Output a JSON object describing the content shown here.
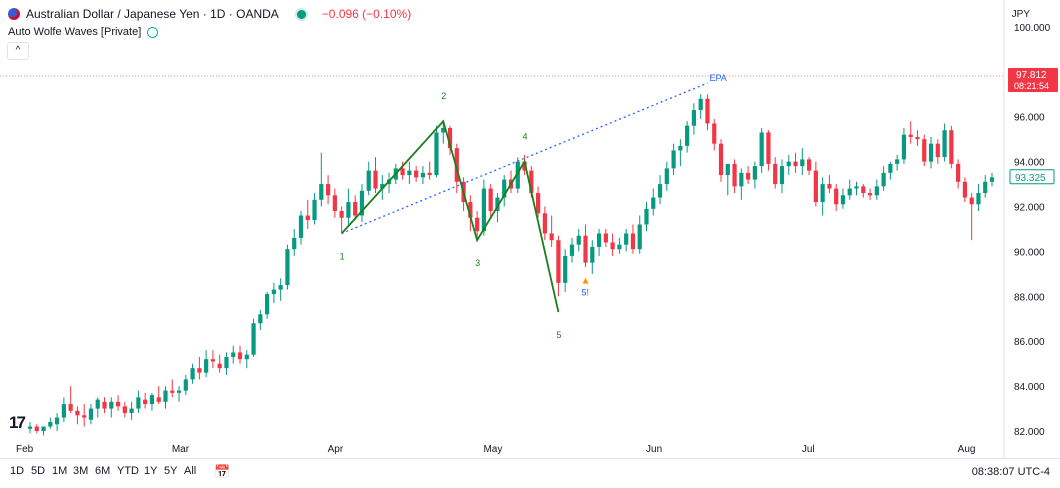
{
  "header": {
    "symbol": "Australian Dollar / Japanese Yen · 1D · OANDA",
    "change": "−0.096 (−0.10%)",
    "currency": "JPY"
  },
  "indicator": {
    "name": "Auto Wolfe Waves [Private]",
    "collapse_glyph": "^"
  },
  "bottom_bar": {
    "timeframes": [
      "1D",
      "5D",
      "1M",
      "3M",
      "6M",
      "YTD",
      "1Y",
      "5Y",
      "All"
    ],
    "clock": "08:38:07 UTC-4"
  },
  "colors": {
    "up": "#089981",
    "down": "#f23645",
    "wave": "#1b7f1b",
    "epa": "#2962ff",
    "marker": "#ff9800"
  },
  "chart_data": {
    "type": "candlestick",
    "ylim": [
      81.6,
      101.2
    ],
    "yticks": [
      "100.000",
      "98.000",
      "96.000",
      "94.000",
      "92.000",
      "90.000",
      "88.000",
      "86.000",
      "84.000",
      "82.000"
    ],
    "ytick_values": [
      100,
      98,
      96,
      94,
      92,
      90,
      88,
      86,
      84,
      82
    ],
    "xlabels": [
      "Feb",
      "Mar",
      "Apr",
      "May",
      "Jun",
      "Jul",
      "Aug"
    ],
    "xlabel_index": [
      0,
      23,
      46,
      69,
      93,
      116,
      139
    ],
    "price_labels": {
      "high_line": {
        "value": 97.812,
        "text": "97.812",
        "countdown": "08:21:54"
      },
      "last": {
        "value": 93.325,
        "text": "93.325"
      }
    },
    "wave_points": [
      {
        "label": "1",
        "i": 46,
        "price": 90.8
      },
      {
        "label": "2",
        "i": 61,
        "price": 95.8
      },
      {
        "label": "3",
        "i": 66,
        "price": 90.5
      },
      {
        "label": "4",
        "i": 73,
        "price": 94.0
      },
      {
        "label": "5",
        "i": 78,
        "price": 87.3
      }
    ],
    "epa": {
      "label": "EPA",
      "from_i": 46,
      "from_price": 90.8,
      "to_i": 100,
      "to_price": 97.5
    },
    "marker": {
      "label": "5!",
      "i": 82,
      "price": 88.7
    },
    "candles": [
      [
        82.1,
        82.4,
        81.9,
        82.2
      ],
      [
        82.2,
        82.3,
        81.9,
        82.0
      ],
      [
        82.0,
        82.2,
        81.8,
        82.2
      ],
      [
        82.2,
        82.6,
        82.1,
        82.4
      ],
      [
        82.3,
        82.8,
        82.0,
        82.6
      ],
      [
        82.6,
        83.5,
        82.4,
        83.2
      ],
      [
        83.2,
        84.0,
        82.8,
        82.9
      ],
      [
        82.9,
        83.1,
        82.3,
        82.7
      ],
      [
        82.7,
        83.2,
        82.2,
        82.6
      ],
      [
        82.5,
        83.2,
        82.3,
        83.0
      ],
      [
        83.0,
        83.5,
        82.6,
        83.4
      ],
      [
        83.3,
        83.5,
        82.8,
        83.0
      ],
      [
        83.0,
        83.5,
        82.6,
        83.3
      ],
      [
        83.3,
        83.6,
        82.9,
        83.1
      ],
      [
        83.1,
        83.3,
        82.6,
        82.8
      ],
      [
        82.8,
        83.3,
        82.5,
        83.0
      ],
      [
        83.0,
        83.8,
        82.8,
        83.5
      ],
      [
        83.4,
        83.7,
        83.0,
        83.2
      ],
      [
        83.2,
        83.7,
        82.9,
        83.6
      ],
      [
        83.5,
        84.0,
        83.2,
        83.3
      ],
      [
        83.3,
        84.0,
        83.0,
        83.8
      ],
      [
        83.8,
        84.3,
        83.5,
        83.7
      ],
      [
        83.7,
        84.0,
        83.3,
        83.8
      ],
      [
        83.8,
        84.5,
        83.6,
        84.3
      ],
      [
        84.3,
        85.0,
        84.1,
        84.8
      ],
      [
        84.8,
        85.3,
        84.3,
        84.6
      ],
      [
        84.6,
        85.6,
        84.4,
        85.2
      ],
      [
        85.2,
        85.6,
        84.8,
        85.1
      ],
      [
        85.0,
        85.4,
        84.6,
        84.8
      ],
      [
        84.8,
        85.5,
        84.5,
        85.3
      ],
      [
        85.3,
        85.8,
        85.0,
        85.5
      ],
      [
        85.5,
        85.8,
        85.0,
        85.2
      ],
      [
        85.2,
        85.6,
        84.8,
        85.4
      ],
      [
        85.4,
        87.0,
        85.3,
        86.8
      ],
      [
        86.8,
        87.4,
        86.5,
        87.2
      ],
      [
        87.2,
        88.2,
        87.0,
        88.1
      ],
      [
        88.1,
        88.6,
        87.7,
        88.3
      ],
      [
        88.3,
        88.8,
        87.8,
        88.5
      ],
      [
        88.5,
        90.3,
        88.3,
        90.1
      ],
      [
        90.1,
        91.0,
        89.8,
        90.6
      ],
      [
        90.6,
        91.8,
        90.3,
        91.6
      ],
      [
        91.6,
        92.3,
        91.0,
        91.4
      ],
      [
        91.4,
        92.6,
        91.2,
        92.3
      ],
      [
        92.3,
        94.4,
        92.0,
        93.0
      ],
      [
        93.0,
        93.4,
        92.1,
        92.5
      ],
      [
        92.5,
        92.8,
        91.5,
        91.8
      ],
      [
        91.8,
        92.0,
        90.8,
        91.5
      ],
      [
        91.5,
        92.8,
        91.2,
        92.2
      ],
      [
        92.2,
        92.5,
        91.4,
        91.6
      ],
      [
        91.6,
        93.0,
        91.3,
        92.7
      ],
      [
        92.7,
        94.0,
        92.5,
        93.6
      ],
      [
        93.6,
        94.2,
        92.6,
        92.8
      ],
      [
        92.8,
        93.4,
        92.3,
        93.0
      ],
      [
        93.0,
        93.5,
        92.6,
        93.2
      ],
      [
        93.2,
        93.9,
        93.0,
        93.7
      ],
      [
        93.7,
        94.0,
        93.2,
        93.4
      ],
      [
        93.4,
        94.0,
        93.0,
        93.6
      ],
      [
        93.6,
        93.8,
        93.1,
        93.3
      ],
      [
        93.3,
        93.8,
        93.0,
        93.5
      ],
      [
        93.5,
        94.0,
        93.2,
        93.4
      ],
      [
        93.4,
        95.6,
        93.3,
        95.3
      ],
      [
        95.3,
        95.8,
        94.8,
        95.5
      ],
      [
        95.5,
        95.6,
        94.3,
        94.6
      ],
      [
        94.6,
        94.8,
        92.6,
        93.1
      ],
      [
        93.1,
        93.3,
        91.8,
        92.2
      ],
      [
        92.2,
        92.5,
        90.9,
        91.5
      ],
      [
        91.5,
        91.8,
        90.5,
        90.9
      ],
      [
        90.9,
        93.2,
        90.7,
        92.8
      ],
      [
        92.8,
        93.0,
        91.5,
        91.8
      ],
      [
        91.8,
        92.6,
        91.3,
        92.4
      ],
      [
        92.4,
        93.4,
        92.0,
        93.2
      ],
      [
        93.2,
        93.6,
        92.6,
        92.8
      ],
      [
        92.8,
        94.2,
        92.6,
        94.0
      ],
      [
        94.0,
        94.3,
        93.4,
        93.6
      ],
      [
        93.6,
        93.8,
        92.4,
        92.6
      ],
      [
        92.6,
        92.9,
        91.5,
        91.7
      ],
      [
        91.7,
        92.0,
        90.5,
        90.8
      ],
      [
        90.8,
        91.6,
        90.2,
        90.5
      ],
      [
        90.5,
        90.7,
        88.0,
        88.6
      ],
      [
        88.6,
        90.1,
        88.2,
        89.8
      ],
      [
        89.8,
        90.6,
        89.5,
        90.3
      ],
      [
        90.3,
        91.0,
        90.0,
        90.7
      ],
      [
        90.7,
        91.2,
        89.3,
        89.5
      ],
      [
        89.5,
        90.5,
        89.0,
        90.2
      ],
      [
        90.2,
        91.0,
        89.8,
        90.8
      ],
      [
        90.8,
        91.0,
        90.2,
        90.4
      ],
      [
        90.4,
        90.8,
        89.8,
        90.1
      ],
      [
        90.1,
        90.6,
        89.9,
        90.3
      ],
      [
        90.3,
        91.0,
        90.0,
        90.8
      ],
      [
        90.8,
        91.2,
        89.9,
        90.1
      ],
      [
        90.1,
        91.6,
        89.9,
        91.2
      ],
      [
        91.2,
        92.2,
        90.9,
        91.9
      ],
      [
        91.9,
        92.8,
        91.6,
        92.4
      ],
      [
        92.4,
        93.4,
        92.1,
        93.0
      ],
      [
        93.0,
        94.0,
        92.7,
        93.7
      ],
      [
        93.7,
        94.8,
        93.4,
        94.5
      ],
      [
        94.5,
        95.0,
        93.8,
        94.7
      ],
      [
        94.7,
        95.8,
        94.4,
        95.6
      ],
      [
        95.6,
        96.6,
        95.2,
        96.3
      ],
      [
        96.3,
        97.0,
        95.9,
        96.8
      ],
      [
        96.8,
        97.0,
        95.4,
        95.7
      ],
      [
        95.7,
        95.9,
        94.5,
        94.8
      ],
      [
        94.8,
        95.0,
        93.1,
        93.4
      ],
      [
        93.4,
        93.8,
        92.5,
        93.9
      ],
      [
        93.9,
        94.1,
        92.6,
        92.9
      ],
      [
        92.9,
        93.7,
        92.3,
        93.5
      ],
      [
        93.5,
        93.8,
        93.0,
        93.2
      ],
      [
        93.2,
        94.0,
        92.8,
        93.8
      ],
      [
        93.8,
        95.5,
        93.5,
        95.3
      ],
      [
        95.3,
        95.4,
        93.6,
        93.9
      ],
      [
        93.9,
        94.2,
        92.8,
        93.0
      ],
      [
        93.0,
        94.1,
        92.6,
        93.8
      ],
      [
        93.8,
        94.3,
        93.4,
        94.0
      ],
      [
        94.0,
        94.4,
        93.5,
        93.8
      ],
      [
        93.8,
        94.6,
        93.4,
        94.1
      ],
      [
        94.1,
        94.2,
        93.4,
        93.6
      ],
      [
        93.6,
        94.0,
        92.0,
        92.2
      ],
      [
        92.2,
        93.3,
        91.6,
        93.0
      ],
      [
        93.0,
        93.4,
        92.6,
        92.8
      ],
      [
        92.8,
        93.0,
        91.8,
        92.1
      ],
      [
        92.1,
        92.8,
        91.9,
        92.5
      ],
      [
        92.5,
        93.2,
        92.3,
        92.8
      ],
      [
        92.8,
        93.1,
        92.5,
        92.9
      ],
      [
        92.9,
        93.0,
        92.4,
        92.6
      ],
      [
        92.6,
        92.8,
        92.3,
        92.5
      ],
      [
        92.5,
        93.2,
        92.3,
        92.9
      ],
      [
        92.9,
        93.8,
        92.7,
        93.5
      ],
      [
        93.5,
        94.0,
        93.2,
        93.9
      ],
      [
        93.9,
        94.3,
        93.6,
        94.1
      ],
      [
        94.1,
        95.5,
        93.9,
        95.2
      ],
      [
        95.2,
        95.8,
        94.8,
        95.1
      ],
      [
        95.1,
        95.4,
        94.7,
        95.0
      ],
      [
        95.0,
        95.2,
        93.8,
        94.0
      ],
      [
        94.0,
        95.1,
        93.7,
        94.8
      ],
      [
        94.8,
        95.0,
        93.9,
        94.2
      ],
      [
        94.2,
        95.7,
        94.0,
        95.4
      ],
      [
        95.4,
        95.6,
        93.7,
        93.9
      ],
      [
        93.9,
        94.1,
        92.8,
        93.1
      ],
      [
        93.1,
        93.3,
        92.2,
        92.4
      ],
      [
        92.4,
        92.6,
        90.5,
        92.1
      ],
      [
        92.1,
        93.0,
        91.8,
        92.6
      ],
      [
        92.6,
        93.4,
        92.4,
        93.1
      ],
      [
        93.1,
        93.5,
        92.9,
        93.3
      ]
    ]
  }
}
